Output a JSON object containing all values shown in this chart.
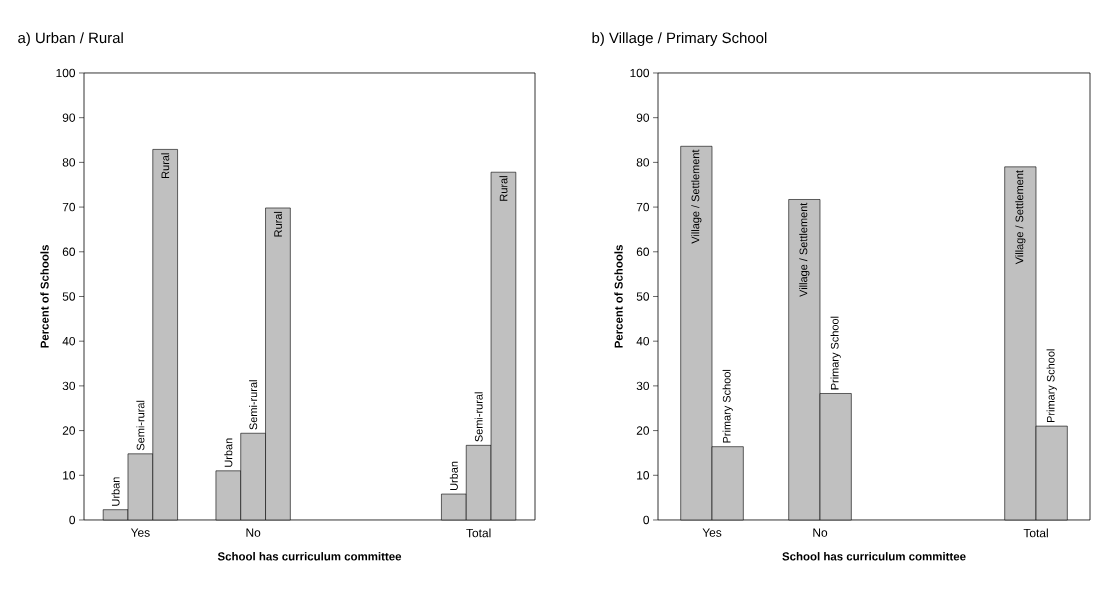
{
  "chart_data": [
    {
      "type": "bar",
      "title": "a) Urban / Rural",
      "xlabel": "School has curriculum committee",
      "ylabel": "Percent of Schools",
      "categories": [
        "Yes",
        "No",
        null,
        "Total"
      ],
      "ylim": [
        0,
        100
      ],
      "yticks": [
        0,
        10,
        20,
        30,
        40,
        50,
        60,
        70,
        80,
        90,
        100
      ],
      "series": [
        {
          "name": "Urban",
          "color": "#c0c0c0",
          "values": [
            2.3,
            11,
            null,
            5.8
          ]
        },
        {
          "name": "Semi-rural",
          "color": "#c0c0c0",
          "values": [
            14.8,
            19.4,
            null,
            16.7
          ]
        },
        {
          "name": "Rural",
          "color": "#c0c0c0",
          "values": [
            82.9,
            69.8,
            null,
            77.8
          ]
        }
      ]
    },
    {
      "type": "bar",
      "title": "b) Village / Primary School",
      "xlabel": "School has curriculum committee",
      "ylabel": "Percent of Schools",
      "categories": [
        "Yes",
        "No",
        null,
        "Total"
      ],
      "ylim": [
        0,
        100
      ],
      "yticks": [
        0,
        10,
        20,
        30,
        40,
        50,
        60,
        70,
        80,
        90,
        100
      ],
      "series": [
        {
          "name": "Village / Settlement",
          "color": "#c0c0c0",
          "values": [
            83.6,
            71.7,
            null,
            79
          ]
        },
        {
          "name": "Primary School",
          "color": "#c0c0c0",
          "values": [
            16.4,
            28.3,
            null,
            21
          ]
        }
      ]
    }
  ]
}
